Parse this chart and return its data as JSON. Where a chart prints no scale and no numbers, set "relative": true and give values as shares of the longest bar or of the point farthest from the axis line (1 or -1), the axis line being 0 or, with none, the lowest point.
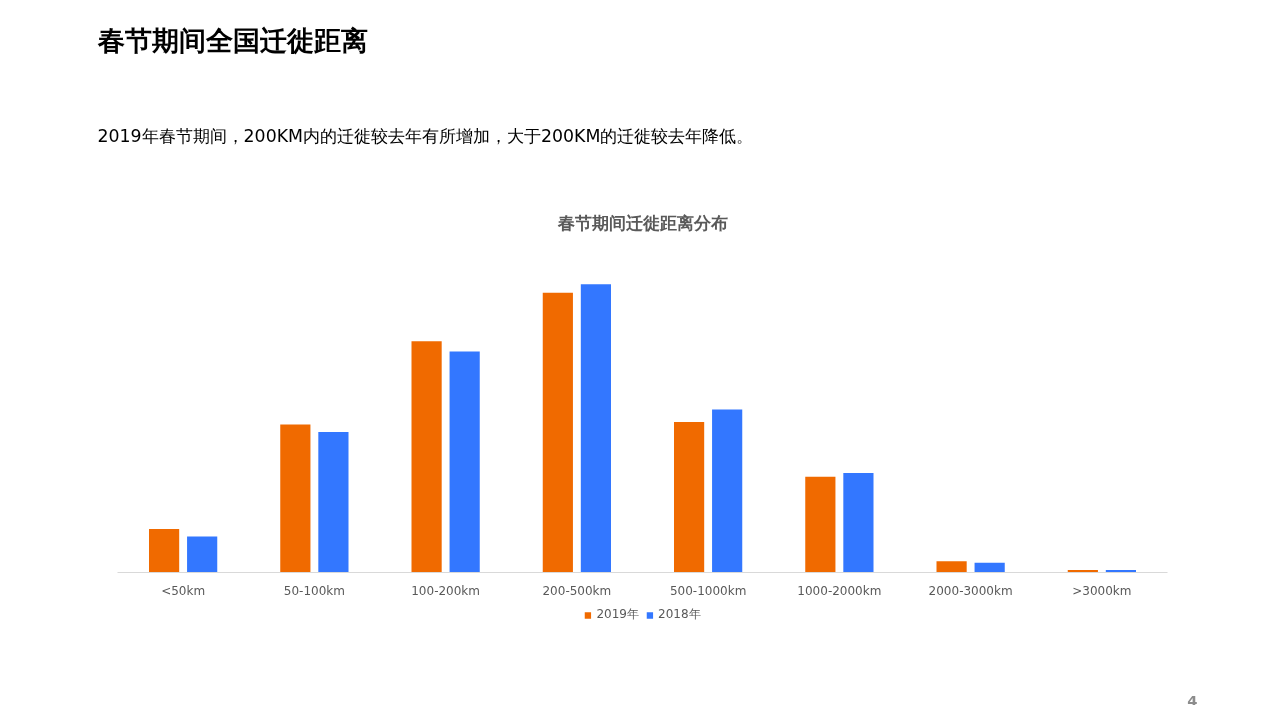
{
  "chart_data": {
    "type": "bar",
    "title": "春节期间全国迁徙距离",
    "subtitle": "春节期间迁徙距离分布",
    "annotations": [
      "2019年春节期间，200KM内的迁徙较去年有所增加，大于200KM的迁徙较去年降低。",
      "4"
    ],
    "categories": [
      "<50km",
      "50-100km",
      "100-200km",
      "200-500km",
      "500-1000km",
      "1000-2000km",
      "2000-3000km",
      ">3000km"
    ],
    "relative": true,
    "series": [
      {
        "name": "2019年",
        "color": "#f06a00",
        "values": [
          0.151,
          0.513,
          0.802,
          0.97,
          0.522,
          0.332,
          0.039,
          0.009
        ]
      },
      {
        "name": "2018年",
        "color": "#3377ff",
        "values": [
          0.125,
          0.487,
          0.767,
          1.0,
          0.565,
          0.345,
          0.034,
          0.009
        ]
      }
    ],
    "grid": false,
    "legend": "bottom"
  }
}
